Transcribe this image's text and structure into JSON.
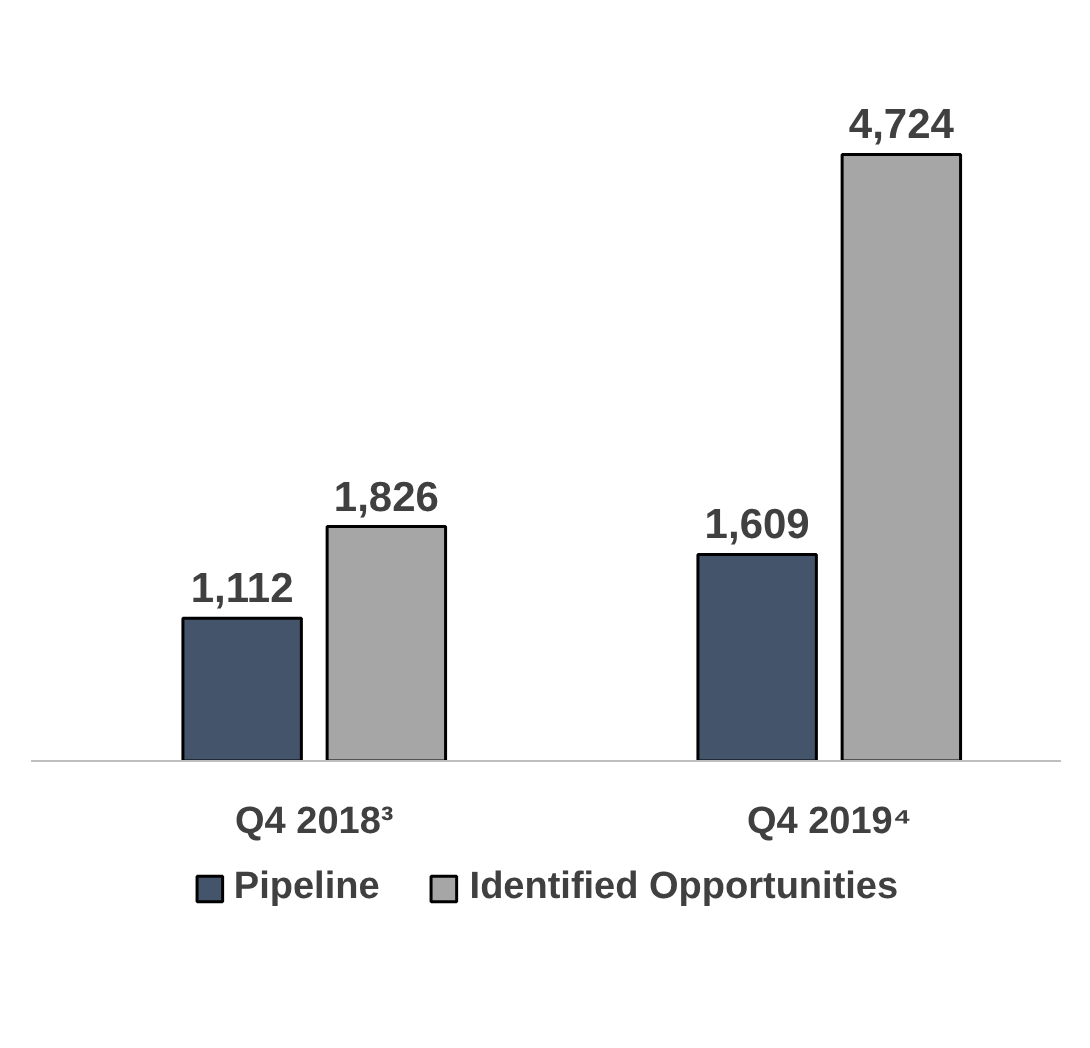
{
  "chart_data": {
    "type": "bar",
    "categories": [
      "Q4 2018³",
      "Q4 2019⁴"
    ],
    "series": [
      {
        "name": "Pipeline",
        "color": "#44546a",
        "values": [
          1112,
          1609
        ],
        "value_labels": [
          "1,112",
          "1,609"
        ]
      },
      {
        "name": "Identified Opportunities",
        "color": "#a6a6a6",
        "values": [
          1826,
          4724
        ],
        "value_labels": [
          "1,826",
          "4,724"
        ]
      }
    ],
    "legend": "bottom"
  }
}
